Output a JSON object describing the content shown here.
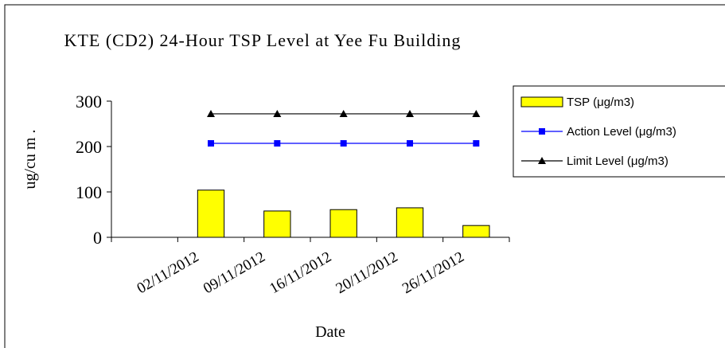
{
  "chart_data": {
    "type": "bar",
    "title": "KTE (CD2) 24-Hour TSP Level at Yee Fu Building",
    "x_label": "Date",
    "y_label": "ug/cu m .",
    "categories": [
      null,
      "02/11/2012",
      "09/11/2012",
      "16/11/2012",
      "20/11/2012",
      "26/11/2012"
    ],
    "series": [
      {
        "name": "TSP (μg/m3)",
        "type": "bar",
        "color": "#ffff00",
        "values": [
          null,
          104,
          58,
          61,
          65,
          26
        ]
      },
      {
        "name": "Action Level (μg/m3)",
        "type": "line",
        "marker": "square",
        "color": "#0000ff",
        "values": [
          null,
          207,
          207,
          207,
          207,
          207
        ]
      },
      {
        "name": "Limit Level (μg/m3)",
        "type": "line",
        "marker": "triangle",
        "color": "#000000",
        "values": [
          null,
          272,
          272,
          272,
          272,
          272
        ]
      }
    ],
    "ylim": [
      0,
      300
    ],
    "yticks": [
      0,
      100,
      200,
      300
    ],
    "grid": false,
    "legend": "right"
  }
}
